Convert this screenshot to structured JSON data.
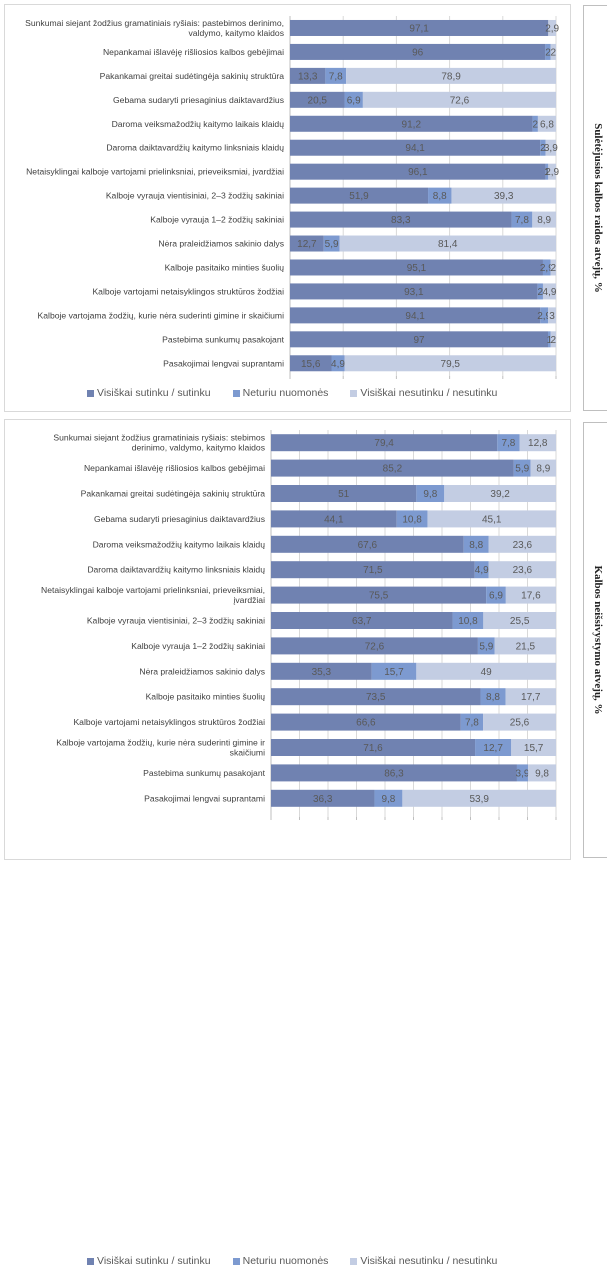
{
  "colors": {
    "agree": "#7082b1",
    "neutral": "#7d9ad0",
    "disagree": "#c3cde3",
    "grid": "#d9d9d9",
    "axis": "#bfbfbf"
  },
  "legend": [
    {
      "label": "Visiškai sutinku / sutinku",
      "color_key": "agree"
    },
    {
      "label": "Neturiu nuomonės",
      "color_key": "neutral"
    },
    {
      "label": "Visiškai nesutinku / nesutinku",
      "color_key": "disagree"
    }
  ],
  "chart_data": [
    {
      "type": "bar",
      "orientation": "horizontal",
      "stacked": "100%",
      "title": "Sulėtėjusios kalbos raidos atvejų, %",
      "xlim": [
        0,
        100
      ],
      "grid": true,
      "grid_step": 20,
      "legend_position": "bottom",
      "categories": [
        [
          "Sunkumai siejant žodžius gramatiniais ryšiais: pastebimos derinimo,",
          "valdymo, kaitymo klaidos"
        ],
        [
          "Nepankamai išlavėję rišliosios kalbos gebėjimai"
        ],
        [
          "Pakankamai greitai sudėtingėja sakinių struktūra"
        ],
        [
          "Gebama sudaryti priesaginius daiktavardžius"
        ],
        [
          "Daroma veiksmažodžių kaitymo laikais klaidų"
        ],
        [
          "Daroma daiktavardžių kaitymo linksniais klaidų"
        ],
        [
          "Netaisyklingai kalboje vartojami prielinksniai, prieveiksmiai, įvardžiai"
        ],
        [
          "Kalboje vyrauja vientisiniai, 2–3 žodžių sakiniai"
        ],
        [
          "Kalboje vyrauja 1–2 žodžių sakiniai"
        ],
        [
          "Nėra praleidžiamos sakinio dalys"
        ],
        [
          "Kalboje pasitaiko minties šuolių"
        ],
        [
          "Kalboje vartojami netaisyklingos struktūros žodžiai"
        ],
        [
          "Kalboje vartojama žodžių, kurie nėra suderinti gimine ir skaičiumi"
        ],
        [
          "Pastebima sunkumų pasakojant"
        ],
        [
          "Pasakojimai lengvai suprantami"
        ]
      ],
      "series": [
        {
          "name": "Visiškai sutinku / sutinku",
          "color_key": "agree",
          "values": [
            97.1,
            96,
            13.3,
            20.5,
            91.2,
            94.1,
            96.1,
            51.9,
            83.3,
            12.7,
            95.1,
            93.1,
            94.1,
            97,
            15.6
          ],
          "labels": [
            "97,1",
            "96",
            "13,3",
            "20,5",
            "91,2",
            "94,1",
            "96,1",
            "51,9",
            "83,3",
            "12,7",
            "95,1",
            "93,1",
            "94,1",
            "97",
            "15,6"
          ]
        },
        {
          "name": "Neturiu nuomonės",
          "color_key": "neutral",
          "values": [
            0,
            2,
            7.8,
            6.9,
            2,
            2,
            1,
            8.8,
            7.8,
            5.9,
            2.9,
            2,
            2.9,
            1,
            4.9
          ],
          "labels": [
            "",
            "2",
            "7,8",
            "6,9",
            "2",
            "2",
            "1",
            "8,8",
            "7,8",
            "5,9",
            "2,9",
            "2",
            "2,9",
            "1",
            "4,9"
          ]
        },
        {
          "name": "Visiškai nesutinku / nesutinku",
          "color_key": "disagree",
          "values": [
            2.9,
            2,
            78.9,
            72.6,
            6.8,
            3.9,
            2.9,
            39.3,
            8.9,
            81.4,
            2,
            4.9,
            3,
            2,
            79.5
          ],
          "labels": [
            "2,9",
            "2",
            "78,9",
            "72,6",
            "6,8",
            "3,9",
            "2,9",
            "39,3",
            "8,9",
            "81,4",
            "2",
            "4,9",
            "3",
            "2",
            "79,5"
          ]
        }
      ]
    },
    {
      "type": "bar",
      "orientation": "horizontal",
      "stacked": "100%",
      "title": "Kalbos neišsivystymo atvejų, %",
      "xlim": [
        0,
        100
      ],
      "grid": true,
      "grid_step": 10,
      "legend_position": "bottom",
      "categories": [
        [
          "Sunkumai siejant žodžius gramatiniais ryšiais: stebimos",
          "derinimo, valdymo, kaitymo klaidos"
        ],
        [
          "Nepankamai išlavėję rišliosios kalbos gebėjimai"
        ],
        [
          "Pakankamai greitai sudėtingėja sakinių struktūra"
        ],
        [
          "Gebama sudaryti priesaginius daiktavardžius"
        ],
        [
          "Daroma veiksmažodžių kaitymo laikais klaidų"
        ],
        [
          "Daroma daiktavardžių kaitymo linksniais klaidų"
        ],
        [
          "Netaisyklingai kalboje vartojami prielinksniai, prieveiksmiai,",
          "įvardžiai"
        ],
        [
          "Kalboje vyrauja vientisiniai, 2–3 žodžių sakiniai"
        ],
        [
          "Kalboje vyrauja 1–2 žodžių sakiniai"
        ],
        [
          "Nėra praleidžiamos sakinio dalys"
        ],
        [
          "Kalboje pasitaiko minties šuolių"
        ],
        [
          "Kalboje vartojami netaisyklingos struktūros žodžiai"
        ],
        [
          "Kalboje vartojama žodžių, kurie nėra suderinti gimine ir",
          "skaičiumi"
        ],
        [
          "Pastebima sunkumų pasakojant"
        ],
        [
          "Pasakojimai lengvai suprantami"
        ]
      ],
      "series": [
        {
          "name": "Visiškai sutinku / sutinku",
          "color_key": "agree",
          "values": [
            79.4,
            85.2,
            51,
            44.1,
            67.6,
            71.5,
            75.5,
            63.7,
            72.6,
            35.3,
            73.5,
            66.6,
            71.6,
            86.3,
            36.3
          ],
          "labels": [
            "79,4",
            "85,2",
            "51",
            "44,1",
            "67,6",
            "71,5",
            "75,5",
            "63,7",
            "72,6",
            "35,3",
            "73,5",
            "66,6",
            "71,6",
            "86,3",
            "36,3"
          ]
        },
        {
          "name": "Neturiu nuomonės",
          "color_key": "neutral",
          "values": [
            7.8,
            5.9,
            9.8,
            10.8,
            8.8,
            4.9,
            6.9,
            10.8,
            5.9,
            15.7,
            8.8,
            7.8,
            12.7,
            3.9,
            9.8
          ],
          "labels": [
            "7,8",
            "5,9",
            "9,8",
            "10,8",
            "8,8",
            "4,9",
            "6,9",
            "10,8",
            "5,9",
            "15,7",
            "8,8",
            "7,8",
            "12,7",
            "3,9",
            "9,8"
          ]
        },
        {
          "name": "Visiškai nesutinku / nesutinku",
          "color_key": "disagree",
          "values": [
            12.8,
            8.9,
            39.2,
            45.1,
            23.6,
            23.6,
            17.6,
            25.5,
            21.5,
            49,
            17.7,
            25.6,
            15.7,
            9.8,
            53.9
          ],
          "labels": [
            "12,8",
            "8,9",
            "39,2",
            "45,1",
            "23,6",
            "23,6",
            "17,6",
            "25,5",
            "21,5",
            "49",
            "17,7",
            "25,6",
            "15,7",
            "9,8",
            "53,9"
          ]
        }
      ]
    }
  ]
}
